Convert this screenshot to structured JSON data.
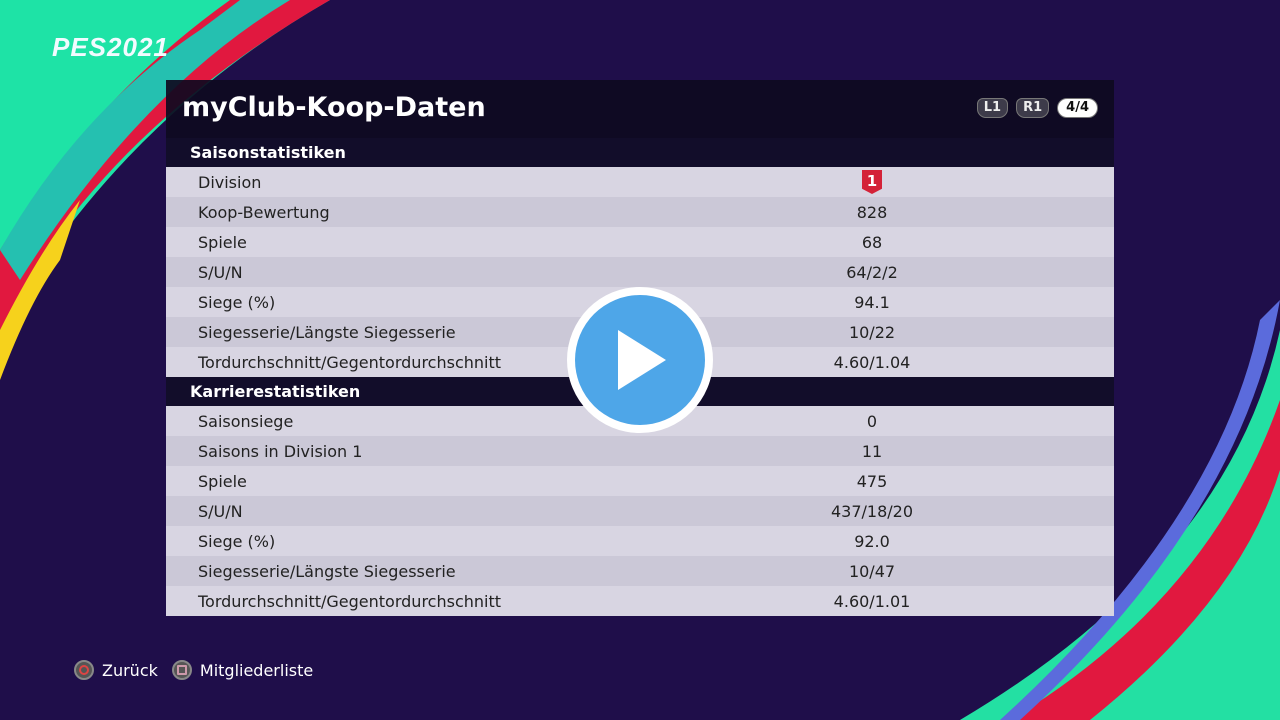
{
  "logo": "PES2021",
  "title": "myClub-Koop-Daten",
  "nav": {
    "l1": "L1",
    "r1": "R1",
    "page": "4/4"
  },
  "season": {
    "header": "Saisonstatistiken",
    "rows": [
      {
        "label": "Division",
        "value": "1"
      },
      {
        "label": "Koop-Bewertung",
        "value": "828"
      },
      {
        "label": "Spiele",
        "value": "68"
      },
      {
        "label": "S/U/N",
        "value": "64/2/2"
      },
      {
        "label": "Siege (%)",
        "value": "94.1"
      },
      {
        "label": "Siegesserie/Längste Siegesserie",
        "value": "10/22"
      },
      {
        "label": "Tordurchschnitt/Gegentordurchschnitt",
        "value": "4.60/1.04"
      }
    ]
  },
  "career": {
    "header": "Karrierestatistiken",
    "rows": [
      {
        "label": "Saisonsiege",
        "value": "0"
      },
      {
        "label": "Saisons in Division 1",
        "value": "11"
      },
      {
        "label": "Spiele",
        "value": "475"
      },
      {
        "label": "S/U/N",
        "value": "437/18/20"
      },
      {
        "label": "Siege (%)",
        "value": "92.0"
      },
      {
        "label": "Siegesserie/Längste Siegesserie",
        "value": "10/47"
      },
      {
        "label": "Tordurchschnitt/Gegentordurchschnitt",
        "value": "4.60/1.01"
      }
    ]
  },
  "footer": {
    "back": "Zurück",
    "members": "Mitgliederliste"
  },
  "colors": {
    "background": "#1f0e4a",
    "division_badge": "#d42238",
    "play": "#4ea6e8"
  }
}
